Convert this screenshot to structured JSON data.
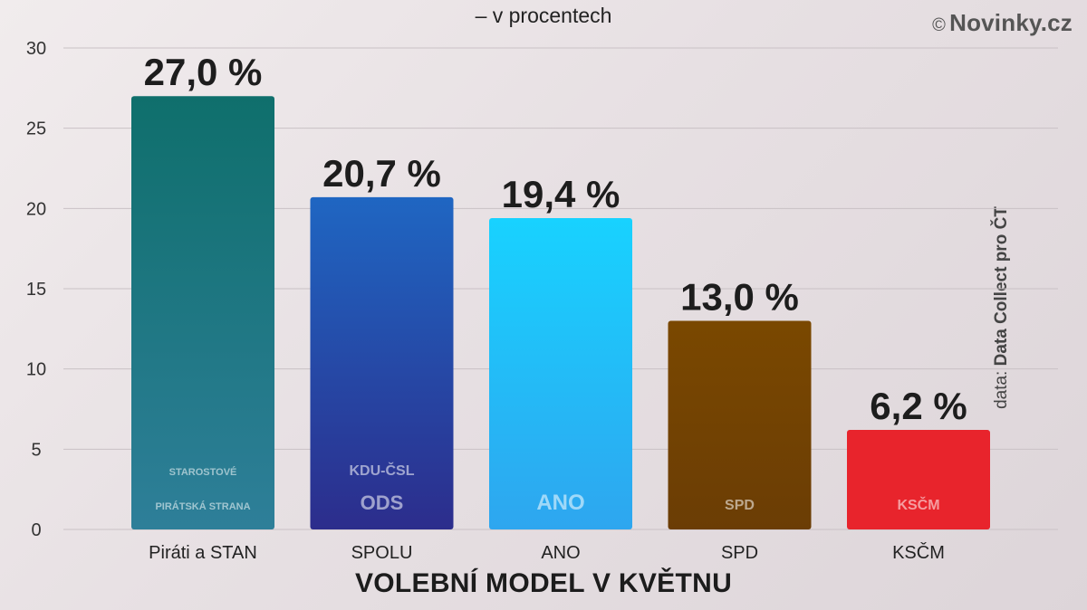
{
  "header": {
    "subtitle": "– v procentech",
    "brand_copyright": "©",
    "brand_name": "Novinky.cz"
  },
  "source": {
    "prefix": "data:",
    "name": "Data Collect pro ČT"
  },
  "chart_data": {
    "type": "bar",
    "title": "VOLEBNÍ MODEL V KVĚTNU",
    "subtitle": "– v procentech",
    "categories": [
      "Piráti a STAN",
      "SPOLU",
      "ANO",
      "SPD",
      "KSČM"
    ],
    "values": [
      27.0,
      20.7,
      19.4,
      13.0,
      6.2
    ],
    "value_labels": [
      "27,0 %",
      "20,7 %",
      "19,4 %",
      "13,0 %",
      "6,2 %"
    ],
    "colors": [
      [
        "#0f6f6c",
        "#2e7f99"
      ],
      [
        "#1f66c2",
        "#2c2d8c"
      ],
      [
        "#18d2ff",
        "#2ea6ef"
      ],
      [
        "#7a4800",
        "#6b3d05"
      ],
      [
        "#e8242c",
        "#e8242c"
      ]
    ],
    "logos": [
      [
        "STAROSTOVÉ",
        "PIRÁTSKÁ STRANA"
      ],
      [
        "KDU-ČSL",
        "ODS"
      ],
      [
        "ANO"
      ],
      [
        "SPD"
      ],
      [
        "KSČM"
      ]
    ],
    "ylim": [
      0,
      30
    ],
    "yticks": [
      0,
      5,
      10,
      15,
      20,
      25,
      30
    ],
    "grid": true,
    "xlabel": "",
    "ylabel": ""
  }
}
